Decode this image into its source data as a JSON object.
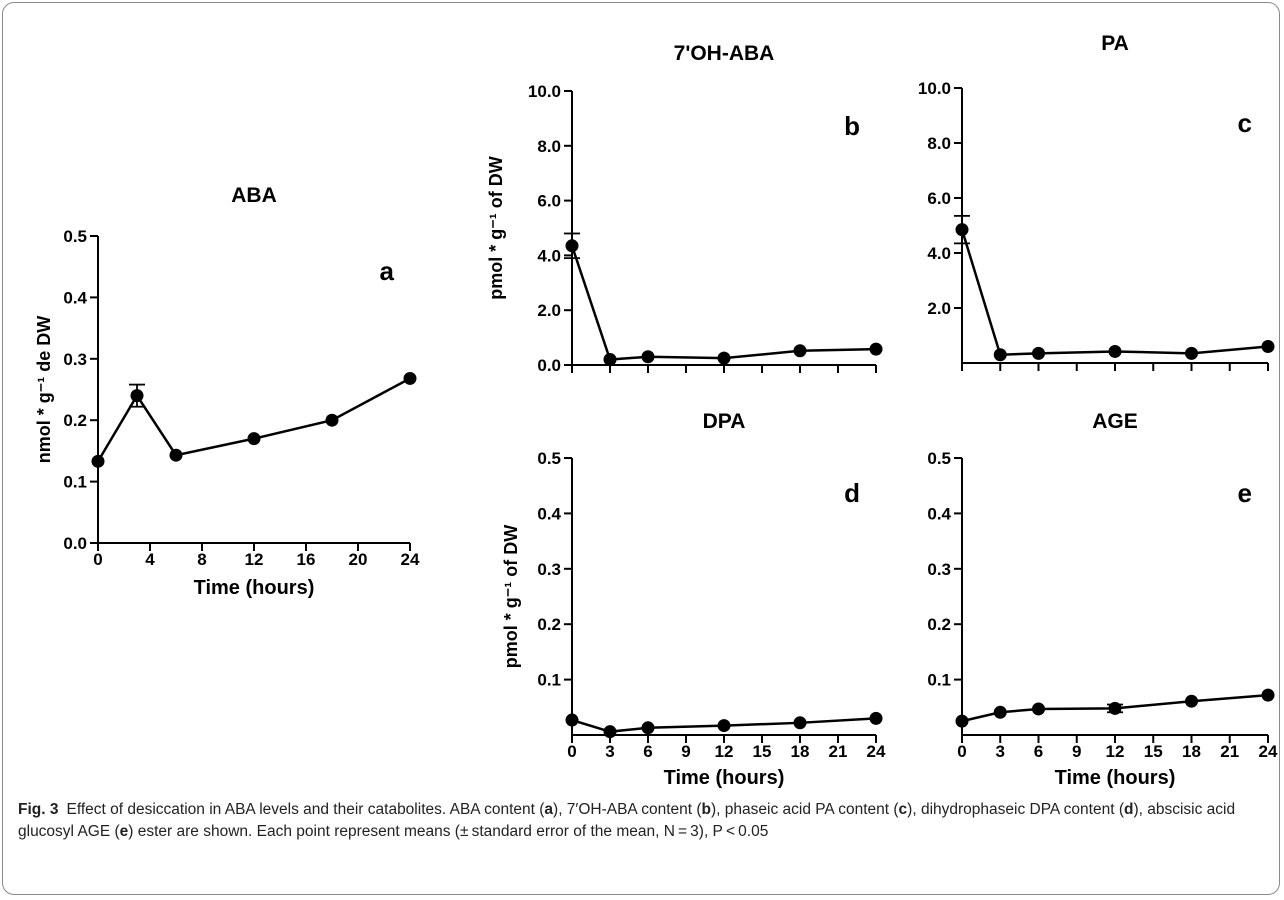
{
  "figure": {
    "caption_label": "Fig. 3",
    "caption_parts": [
      {
        "text": "Effect of desiccation in ABA levels and their catabolites. ABA content (",
        "bold": false
      },
      {
        "text": "a",
        "bold": true
      },
      {
        "text": "), 7′OH-ABA content (",
        "bold": false
      },
      {
        "text": "b",
        "bold": true
      },
      {
        "text": "), phaseic acid PA content (",
        "bold": false
      },
      {
        "text": "c",
        "bold": true
      },
      {
        "text": "), dihydrophaseic DPA content (",
        "bold": false
      },
      {
        "text": "d",
        "bold": true
      },
      {
        "text": "), abscisic acid glucosyl AGE (",
        "bold": false
      },
      {
        "text": "e",
        "bold": true
      },
      {
        "text": ") ester are shown. Each point represent means (± standard error of the mean, N = 3), P < 0.05",
        "bold": false
      }
    ]
  },
  "chart_data": [
    {
      "id": "a",
      "type": "line",
      "title": "ABA",
      "panel_letter": "a",
      "xlabel": "Time (hours)",
      "ylabel": "nmol * g⁻¹ de DW",
      "xlim": [
        0,
        24
      ],
      "ylim": [
        0,
        0.5
      ],
      "xticks": [
        0,
        4,
        8,
        12,
        16,
        20,
        24
      ],
      "xtick_labels": [
        "0",
        "4",
        "8",
        "12",
        "16",
        "20",
        "24"
      ],
      "yticks": [
        0,
        0.1,
        0.2,
        0.3,
        0.4,
        0.5
      ],
      "ytick_labels": [
        "0.0",
        "0.1",
        "0.2",
        "0.3",
        "0.4",
        "0.5"
      ],
      "x": [
        0,
        3,
        6,
        12,
        18,
        24
      ],
      "y": [
        0.133,
        0.24,
        0.143,
        0.17,
        0.2,
        0.268
      ],
      "err": [
        0,
        0.018,
        0,
        0,
        0,
        0
      ],
      "grid": false
    },
    {
      "id": "b",
      "type": "line",
      "title": "7'OH-ABA",
      "panel_letter": "b",
      "xlabel": "",
      "ylabel": "pmol * g⁻¹ of DW",
      "xlim": [
        0,
        24
      ],
      "ylim": [
        0,
        10
      ],
      "xticks": [
        0,
        3,
        6,
        9,
        12,
        15,
        18,
        21,
        24
      ],
      "xtick_labels": [],
      "yticks": [
        0,
        2,
        4,
        6,
        8,
        10
      ],
      "ytick_labels": [
        "0.0",
        "2.0",
        "4.0",
        "6.0",
        "8.0",
        "10.0"
      ],
      "x": [
        0,
        3,
        6,
        12,
        18,
        24
      ],
      "y": [
        4.35,
        0.2,
        0.3,
        0.25,
        0.52,
        0.58
      ],
      "err": [
        0.45,
        0,
        0,
        0,
        0,
        0
      ],
      "grid": false
    },
    {
      "id": "c",
      "type": "line",
      "title": "PA",
      "panel_letter": "c",
      "xlabel": "",
      "ylabel": "",
      "xlim": [
        0,
        24
      ],
      "ylim": [
        0,
        10
      ],
      "xticks": [
        0,
        3,
        6,
        9,
        12,
        15,
        18,
        21,
        24
      ],
      "xtick_labels": [],
      "yticks": [
        2,
        4,
        6,
        8,
        10
      ],
      "ytick_labels": [
        "2.0",
        "4.0",
        "6.0",
        "8.0",
        "10.0"
      ],
      "x": [
        0,
        3,
        6,
        12,
        18,
        24
      ],
      "y": [
        4.85,
        0.3,
        0.35,
        0.42,
        0.35,
        0.6
      ],
      "err": [
        0.5,
        0,
        0,
        0,
        0,
        0
      ],
      "grid": false
    },
    {
      "id": "d",
      "type": "line",
      "title": "DPA",
      "panel_letter": "d",
      "xlabel": "Time (hours)",
      "ylabel": "pmol * g⁻¹ of DW",
      "xlim": [
        0,
        24
      ],
      "ylim": [
        0,
        0.5
      ],
      "xticks": [
        0,
        3,
        6,
        9,
        12,
        15,
        18,
        21,
        24
      ],
      "xtick_labels": [
        "0",
        "3",
        "6",
        "9",
        "12",
        "15",
        "18",
        "21",
        "24"
      ],
      "yticks": [
        0.1,
        0.2,
        0.3,
        0.4,
        0.5
      ],
      "ytick_labels": [
        "0.1",
        "0.2",
        "0.3",
        "0.4",
        "0.5"
      ],
      "x": [
        0,
        3,
        6,
        12,
        18,
        24
      ],
      "y": [
        0.027,
        0.006,
        0.013,
        0.017,
        0.022,
        0.03
      ],
      "err": [
        0,
        0,
        0,
        0,
        0,
        0
      ],
      "grid": false
    },
    {
      "id": "e",
      "type": "line",
      "title": "AGE",
      "panel_letter": "e",
      "xlabel": "Time (hours)",
      "ylabel": "",
      "xlim": [
        0,
        24
      ],
      "ylim": [
        0,
        0.5
      ],
      "xticks": [
        0,
        3,
        6,
        9,
        12,
        15,
        18,
        21,
        24
      ],
      "xtick_labels": [
        "0",
        "3",
        "6",
        "9",
        "12",
        "15",
        "18",
        "21",
        "24"
      ],
      "yticks": [
        0.1,
        0.2,
        0.3,
        0.4,
        0.5
      ],
      "ytick_labels": [
        "0.1",
        "0.2",
        "0.3",
        "0.4",
        "0.5"
      ],
      "x": [
        0,
        3,
        6,
        12,
        18,
        24
      ],
      "y": [
        0.025,
        0.041,
        0.047,
        0.048,
        0.061,
        0.072
      ],
      "err": [
        0,
        0,
        0,
        0.007,
        0,
        0
      ],
      "grid": false
    }
  ]
}
